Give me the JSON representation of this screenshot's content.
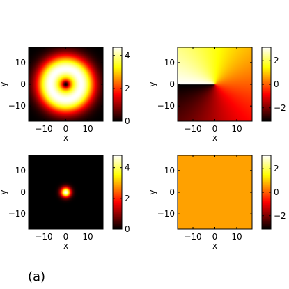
{
  "figure": {
    "caption": "(a)"
  },
  "colormap": "hot",
  "chart_data": [
    {
      "type": "heatmap",
      "field": "ring",
      "xlabel": "x",
      "ylabel": "y",
      "xlim": [
        -17,
        17
      ],
      "ylim": [
        -17,
        17
      ],
      "xticks": [
        -10,
        0,
        10
      ],
      "yticks": [
        -10,
        0,
        10
      ],
      "xtick_labels": [
        "−10",
        "0",
        "10"
      ],
      "ytick_labels": [
        "10",
        "0",
        "−10"
      ],
      "clim": [
        0,
        4.5
      ],
      "colorbar_ticks": [
        0,
        2,
        4
      ],
      "colorbar_tick_labels": [
        "0",
        "2",
        "4"
      ],
      "peak_value": 4.5,
      "peak_radius": 7,
      "core_radius": 1.2,
      "ring_width": 4.5
    },
    {
      "type": "heatmap",
      "field": "phase",
      "xlabel": "x",
      "ylabel": "y",
      "xlim": [
        -17,
        17
      ],
      "ylim": [
        -17,
        17
      ],
      "xticks": [
        -10,
        0,
        10
      ],
      "yticks": [
        -10,
        0,
        10
      ],
      "xtick_labels": [
        "−10",
        "0",
        "10"
      ],
      "ytick_labels": [
        "10",
        "0",
        "−10"
      ],
      "clim": [
        -3.14,
        3.14
      ],
      "colorbar_ticks": [
        -2,
        0,
        2
      ],
      "colorbar_tick_labels": [
        "−2",
        "0",
        "2"
      ],
      "winding": 1
    },
    {
      "type": "heatmap",
      "field": "gaussian",
      "xlabel": "x",
      "ylabel": "y",
      "xlim": [
        -17,
        17
      ],
      "ylim": [
        -17,
        17
      ],
      "xticks": [
        -10,
        0,
        10
      ],
      "yticks": [
        -10,
        0,
        10
      ],
      "xtick_labels": [
        "−10",
        "0",
        "10"
      ],
      "ytick_labels": [
        "10",
        "0",
        "−10"
      ],
      "clim": [
        0,
        4.8
      ],
      "colorbar_ticks": [
        0,
        2,
        4
      ],
      "colorbar_tick_labels": [
        "0",
        "2",
        "4"
      ],
      "peak_value": 4.8,
      "width": 1.6
    },
    {
      "type": "heatmap",
      "field": "uniform",
      "xlabel": "x",
      "ylabel": "y",
      "xlim": [
        -17,
        17
      ],
      "ylim": [
        -17,
        17
      ],
      "xticks": [
        -10,
        0,
        10
      ],
      "yticks": [
        -10,
        0,
        10
      ],
      "xtick_labels": [
        "−10",
        "0",
        "10"
      ],
      "ytick_labels": [
        "10",
        "0",
        "−10"
      ],
      "clim": [
        -3.14,
        3.14
      ],
      "colorbar_ticks": [
        -2,
        0,
        2
      ],
      "colorbar_tick_labels": [
        "−2",
        "0",
        "2"
      ],
      "value": 0.6
    }
  ]
}
